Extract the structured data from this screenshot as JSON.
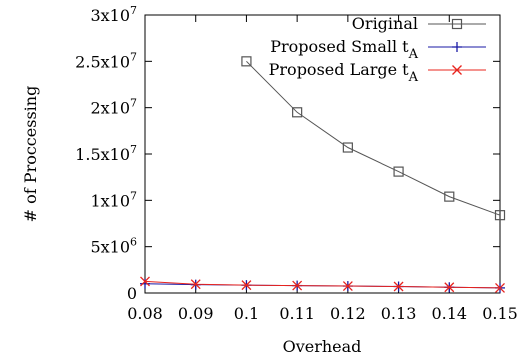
{
  "chart_data": {
    "type": "line",
    "xlabel": "Overhead",
    "ylabel": "# of Proccessing",
    "xlim": [
      0.08,
      0.15
    ],
    "ylim": [
      0,
      30000000
    ],
    "x_ticks": [
      0.08,
      0.09,
      0.1,
      0.11,
      0.12,
      0.13,
      0.14,
      0.15
    ],
    "x_tick_labels": [
      "0.08",
      "0.09",
      "0.1",
      "0.11",
      "0.12",
      "0.13",
      "0.14",
      "0.15"
    ],
    "y_ticks": [
      {
        "value": 0,
        "mantissa": "0",
        "exponent": ""
      },
      {
        "value": 5000000,
        "mantissa": "5x10",
        "exponent": "6"
      },
      {
        "value": 10000000,
        "mantissa": "1x10",
        "exponent": "7"
      },
      {
        "value": 15000000,
        "mantissa": "1.5x10",
        "exponent": "7"
      },
      {
        "value": 20000000,
        "mantissa": "2x10",
        "exponent": "7"
      },
      {
        "value": 25000000,
        "mantissa": "2.5x10",
        "exponent": "7"
      },
      {
        "value": 30000000,
        "mantissa": "3x10",
        "exponent": "7"
      }
    ],
    "grid": false,
    "legend_position": "top-right",
    "series": [
      {
        "name": "Original",
        "name_main": "Original",
        "name_sub": "",
        "color": "#555555",
        "marker": "square",
        "x": [
          0.1,
          0.11,
          0.12,
          0.13,
          0.14,
          0.15
        ],
        "values": [
          25000000,
          19500000,
          15700000,
          13100000,
          10400000,
          8400000
        ]
      },
      {
        "name": "Proposed Small tA",
        "name_main": "Proposed Small t",
        "name_sub": "A",
        "color": "#1a1aa6",
        "marker": "plus",
        "x": [
          0.08,
          0.09,
          0.1,
          0.11,
          0.12,
          0.13,
          0.14,
          0.15
        ],
        "values": [
          1000000,
          900000,
          850000,
          800000,
          750000,
          700000,
          620000,
          550000
        ]
      },
      {
        "name": "Proposed Large tA",
        "name_main": "Proposed Large t",
        "name_sub": "A",
        "color": "#e8241e",
        "marker": "cross",
        "x": [
          0.08,
          0.09,
          0.1,
          0.11,
          0.12,
          0.13,
          0.14,
          0.15
        ],
        "values": [
          1250000,
          950000,
          850000,
          800000,
          750000,
          700000,
          620000,
          550000
        ]
      }
    ]
  }
}
